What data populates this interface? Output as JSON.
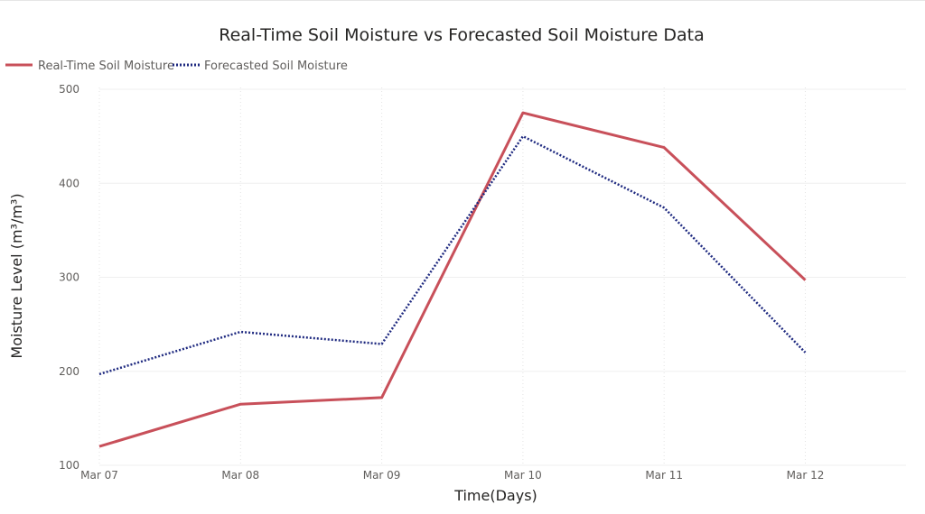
{
  "chart_data": {
    "type": "line",
    "title": "Real-Time Soil Moisture vs Forecasted Soil Moisture Data",
    "xlabel": "Time(Days)",
    "ylabel": "Moisture Level (m³/m³)",
    "categories": [
      "Mar 07",
      "Mar 08",
      "Mar 09",
      "Mar 10",
      "Mar 11",
      "Mar 12"
    ],
    "yticks": [
      "100",
      "200",
      "300",
      "400",
      "500"
    ],
    "ylim": [
      100,
      500
    ],
    "grid": true,
    "legend_position": "top-left",
    "series": [
      {
        "name": "Real-Time Soil Moisture",
        "values": [
          120,
          165,
          172,
          475,
          438,
          297
        ],
        "color": "#c8505a",
        "style": "solid"
      },
      {
        "name": "Forecasted Soil Moisture",
        "values": [
          197,
          242,
          229,
          450,
          374,
          220
        ],
        "color": "#1f2a80",
        "style": "dotted"
      }
    ]
  }
}
